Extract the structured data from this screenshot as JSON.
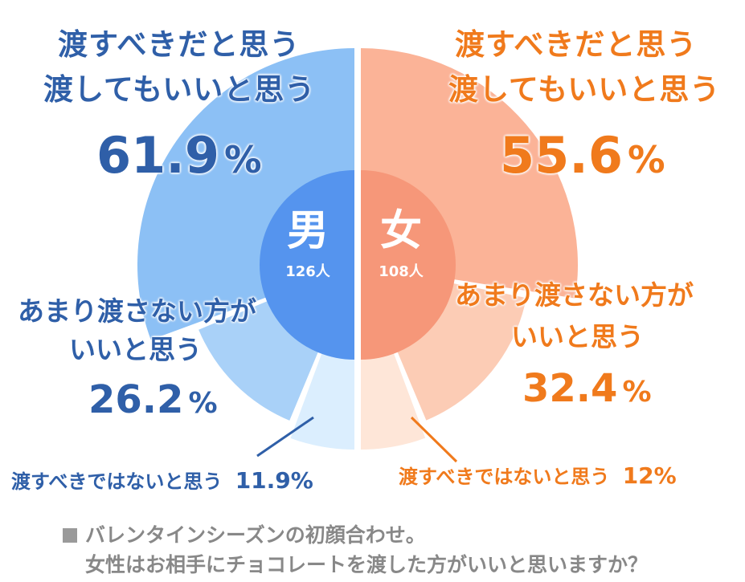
{
  "chart_data": [
    {
      "type": "pie",
      "group": "男",
      "respondents": "126人",
      "slices": [
        {
          "label_lines": [
            "渡すべきだと思う",
            "渡してもいいと思う"
          ],
          "value": 61.9,
          "value_text": "61.9",
          "unit": "%",
          "color": "#8cc0f5"
        },
        {
          "label_lines": [
            "あまり渡さない方が",
            "いいと思う"
          ],
          "value": 26.2,
          "value_text": "26.2",
          "unit": "%",
          "color": "#a9d1f8"
        },
        {
          "label_lines": [
            "渡すべきではないと思う"
          ],
          "value": 11.9,
          "value_text": "11.9",
          "unit": "%",
          "color": "#dbeefe"
        }
      ],
      "center_color": "#5594ee",
      "text_color": "#2f5fa8"
    },
    {
      "type": "pie",
      "group": "女",
      "respondents": "108人",
      "slices": [
        {
          "label_lines": [
            "渡すべきだと思う",
            "渡してもいいと思う"
          ],
          "value": 55.6,
          "value_text": "55.6",
          "unit": "%",
          "color": "#fbb397"
        },
        {
          "label_lines": [
            "あまり渡さない方が",
            "いいと思う"
          ],
          "value": 32.4,
          "value_text": "32.4",
          "unit": "%",
          "color": "#fcccb5"
        },
        {
          "label_lines": [
            "渡すべきではないと思う"
          ],
          "value": 12,
          "value_text": "12",
          "unit": "%",
          "color": "#fee6d8"
        }
      ],
      "center_color": "#f69779",
      "text_color": "#f07a1c"
    }
  ],
  "caption": {
    "line1": "バレンタインシーズンの初顔合わせ。",
    "line2": "女性はお相手にチョコレートを渡した方がいいと思いますか？"
  }
}
